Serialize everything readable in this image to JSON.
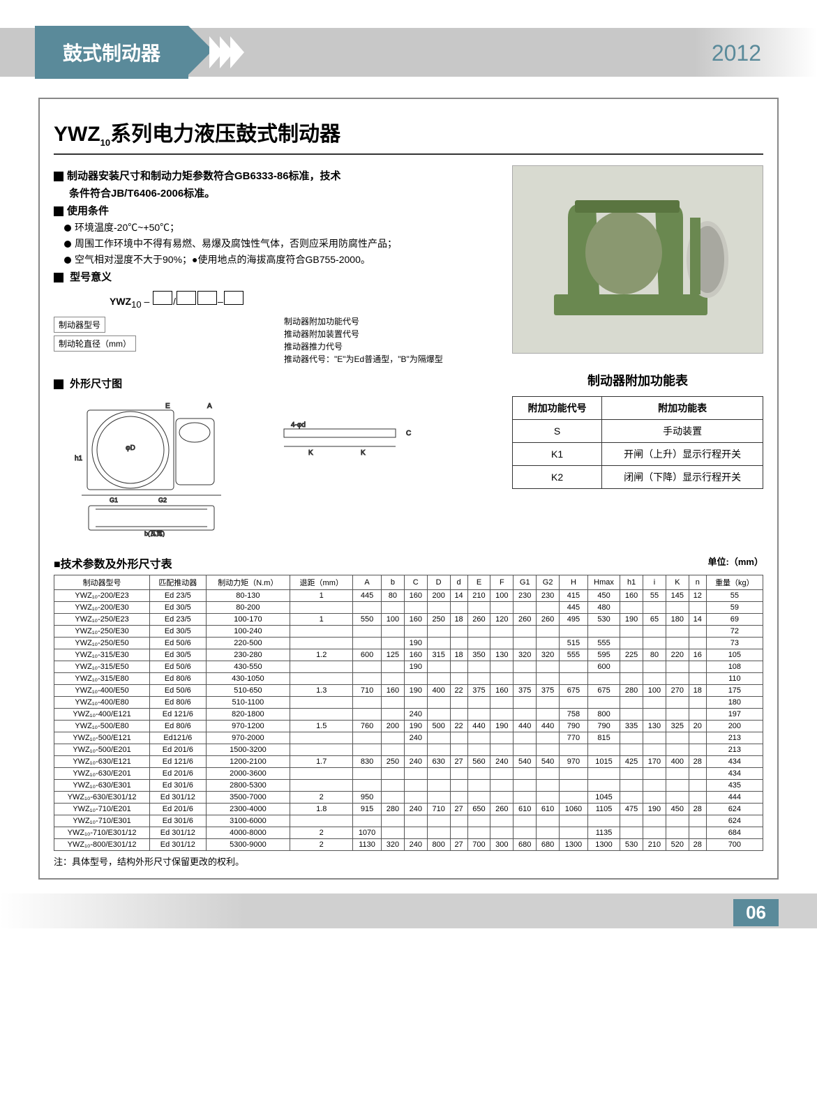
{
  "header": {
    "title": "鼓式制动器",
    "year": "2012"
  },
  "main_title_prefix": "YWZ",
  "main_title_sub": "10",
  "main_title_suffix": "系列电力液压鼓式制动器",
  "specs": {
    "line1": "制动器安装尺寸和制动力矩参数符合GB6333-86标准，技术",
    "line2": "条件符合JB/T6406-2006标准。",
    "usage_title": "使用条件",
    "usage1": "环境温度-20℃~+50℃；",
    "usage2": "周围工作环境中不得有易燃、易爆及腐蚀性气体，否则应采用防腐性产品；",
    "usage3": "空气相对湿度不大于90%；●使用地点的海拔高度符合GB755-2000。",
    "model_title": "型号意义",
    "model_prefix": "YWZ",
    "model_sub": "10",
    "model_label1": "制动器附加功能代号",
    "model_label2": "推动器附加装置代号",
    "model_label3": "推动器推力代号",
    "model_label4": "推动器代号：\"E\"为Ed普通型，\"B\"为隔爆型",
    "model_left1": "制动器型号",
    "model_left2": "制动轮直径（mm）",
    "dimension_title": "外形尺寸图"
  },
  "addon": {
    "title": "制动器附加功能表",
    "headers": [
      "附加功能代号",
      "附加功能表"
    ],
    "rows": [
      [
        "S",
        "手动装置"
      ],
      [
        "K1",
        "开闸（上升）显示行程开关"
      ],
      [
        "K2",
        "闭闸（下降）显示行程开关"
      ]
    ]
  },
  "tech": {
    "title": "■技术参数及外形尺寸表",
    "unit": "单位:（mm）",
    "headers": [
      "制动器型号",
      "匹配推动器",
      "制动力矩（N.m）",
      "退距（mm）",
      "A",
      "b",
      "C",
      "D",
      "d",
      "E",
      "F",
      "G1",
      "G2",
      "H",
      "Hmax",
      "h1",
      "i",
      "K",
      "n",
      "重量（kg）"
    ],
    "rows": [
      [
        "YWZ₁₀-200/E23",
        "Ed 23/5",
        "80-130",
        "1",
        "445",
        "80",
        "160",
        "200",
        "14",
        "210",
        "100",
        "230",
        "230",
        "415",
        "450",
        "160",
        "55",
        "145",
        "12",
        "55"
      ],
      [
        "YWZ₁₀-200/E30",
        "Ed 30/5",
        "80-200",
        "",
        "",
        "",
        "",
        "",
        "",
        "",
        "",
        "",
        "",
        "445",
        "480",
        "",
        "",
        "",
        "",
        "59"
      ],
      [
        "YWZ₁₀-250/E23",
        "Ed 23/5",
        "100-170",
        "1",
        "550",
        "100",
        "160",
        "250",
        "18",
        "260",
        "120",
        "260",
        "260",
        "495",
        "530",
        "190",
        "65",
        "180",
        "14",
        "69"
      ],
      [
        "YWZ₁₀-250/E30",
        "Ed 30/5",
        "100-240",
        "",
        "",
        "",
        "",
        "",
        "",
        "",
        "",
        "",
        "",
        "",
        "",
        "",
        "",
        "",
        "",
        "72"
      ],
      [
        "YWZ₁₀-250/E50",
        "Ed 50/6",
        "220-500",
        "",
        "",
        "",
        "190",
        "",
        "",
        "",
        "",
        "",
        "",
        "515",
        "555",
        "",
        "",
        "",
        "",
        "73"
      ],
      [
        "YWZ₁₀-315/E30",
        "Ed 30/5",
        "230-280",
        "1.2",
        "600",
        "125",
        "160",
        "315",
        "18",
        "350",
        "130",
        "320",
        "320",
        "555",
        "595",
        "225",
        "80",
        "220",
        "16",
        "105"
      ],
      [
        "YWZ₁₀-315/E50",
        "Ed 50/6",
        "430-550",
        "",
        "",
        "",
        "190",
        "",
        "",
        "",
        "",
        "",
        "",
        "",
        "600",
        "",
        "",
        "",
        "",
        "108"
      ],
      [
        "YWZ₁₀-315/E80",
        "Ed 80/6",
        "430-1050",
        "",
        "",
        "",
        "",
        "",
        "",
        "",
        "",
        "",
        "",
        "",
        "",
        "",
        "",
        "",
        "",
        "110"
      ],
      [
        "YWZ₁₀-400/E50",
        "Ed 50/6",
        "510-650",
        "1.3",
        "710",
        "160",
        "190",
        "400",
        "22",
        "375",
        "160",
        "375",
        "375",
        "675",
        "675",
        "280",
        "100",
        "270",
        "18",
        "175"
      ],
      [
        "YWZ₁₀-400/E80",
        "Ed 80/6",
        "510-1100",
        "",
        "",
        "",
        "",
        "",
        "",
        "",
        "",
        "",
        "",
        "",
        "",
        "",
        "",
        "",
        "",
        "180"
      ],
      [
        "YWZ₁₀-400/E121",
        "Ed 121/6",
        "820-1800",
        "",
        "",
        "",
        "240",
        "",
        "",
        "",
        "",
        "",
        "",
        "758",
        "800",
        "",
        "",
        "",
        "",
        "197"
      ],
      [
        "YWZ₁₀-500/E80",
        "Ed 80/6",
        "970-1200",
        "1.5",
        "760",
        "200",
        "190",
        "500",
        "22",
        "440",
        "190",
        "440",
        "440",
        "790",
        "790",
        "335",
        "130",
        "325",
        "20",
        "200"
      ],
      [
        "YWZ₁₀-500/E121",
        "Ed121/6",
        "970-2000",
        "",
        "",
        "",
        "240",
        "",
        "",
        "",
        "",
        "",
        "",
        "770",
        "815",
        "",
        "",
        "",
        "",
        "213"
      ],
      [
        "YWZ₁₀-500/E201",
        "Ed 201/6",
        "1500-3200",
        "",
        "",
        "",
        "",
        "",
        "",
        "",
        "",
        "",
        "",
        "",
        "",
        "",
        "",
        "",
        "",
        "213"
      ],
      [
        "YWZ₁₀-630/E121",
        "Ed 121/6",
        "1200-2100",
        "1.7",
        "830",
        "250",
        "240",
        "630",
        "27",
        "560",
        "240",
        "540",
        "540",
        "970",
        "1015",
        "425",
        "170",
        "400",
        "28",
        "434"
      ],
      [
        "YWZ₁₀-630/E201",
        "Ed 201/6",
        "2000-3600",
        "",
        "",
        "",
        "",
        "",
        "",
        "",
        "",
        "",
        "",
        "",
        "",
        "",
        "",
        "",
        "",
        "434"
      ],
      [
        "YWZ₁₀-630/E301",
        "Ed 301/6",
        "2800-5300",
        "",
        "",
        "",
        "",
        "",
        "",
        "",
        "",
        "",
        "",
        "",
        "",
        "",
        "",
        "",
        "",
        "435"
      ],
      [
        "YWZ₁₀-630/E301/12",
        "Ed 301/12",
        "3500-7000",
        "2",
        "950",
        "",
        "",
        "",
        "",
        "",
        "",
        "",
        "",
        "",
        "1045",
        "",
        "",
        "",
        "",
        "444"
      ],
      [
        "YWZ₁₀-710/E201",
        "Ed 201/6",
        "2300-4000",
        "1.8",
        "915",
        "280",
        "240",
        "710",
        "27",
        "650",
        "260",
        "610",
        "610",
        "1060",
        "1105",
        "475",
        "190",
        "450",
        "28",
        "624"
      ],
      [
        "YWZ₁₀-710/E301",
        "Ed 301/6",
        "3100-6000",
        "",
        "",
        "",
        "",
        "",
        "",
        "",
        "",
        "",
        "",
        "",
        "",
        "",
        "",
        "",
        "",
        "624"
      ],
      [
        "YWZ₁₀-710/E301/12",
        "Ed 301/12",
        "4000-8000",
        "2",
        "1070",
        "",
        "",
        "",
        "",
        "",
        "",
        "",
        "",
        "",
        "1135",
        "",
        "",
        "",
        "",
        "684"
      ],
      [
        "YWZ₁₀-800/E301/12",
        "Ed 301/12",
        "5300-9000",
        "2",
        "1130",
        "320",
        "240",
        "800",
        "27",
        "700",
        "300",
        "680",
        "680",
        "1300",
        "1300",
        "530",
        "210",
        "520",
        "28",
        "700"
      ]
    ],
    "footnote": "注：具体型号，结构外形尺寸保留更改的权利。"
  },
  "page_number": "06",
  "colors": {
    "accent": "#5a8a9a",
    "header_gray": "#c8c8c8",
    "product_bg": "#d8dad0",
    "brake_green": "#6a8850"
  }
}
